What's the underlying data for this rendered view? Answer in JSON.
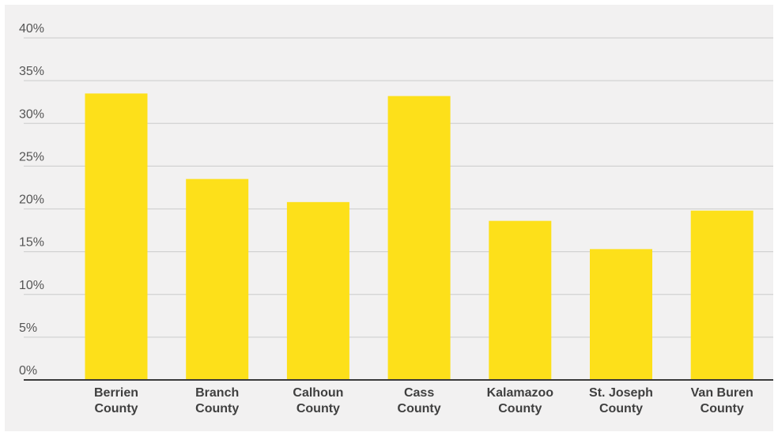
{
  "chart_data": {
    "type": "bar",
    "categories": [
      "Berrien County",
      "Branch County",
      "Calhoun County",
      "Cass County",
      "Kalamazoo County",
      "St. Joseph County",
      "Van Buren County"
    ],
    "category_lines": [
      [
        "Berrien",
        "County"
      ],
      [
        "Branch",
        "County"
      ],
      [
        "Calhoun",
        "County"
      ],
      [
        "Cass",
        "County"
      ],
      [
        "Kalamazoo",
        "County"
      ],
      [
        "St. Joseph",
        "County"
      ],
      [
        "Van Buren",
        "County"
      ]
    ],
    "values": [
      33.5,
      23.5,
      20.8,
      33.2,
      18.6,
      15.3,
      19.8
    ],
    "ylim": [
      0,
      40
    ],
    "yticks": [
      0,
      5,
      10,
      15,
      20,
      25,
      30,
      35,
      40
    ],
    "ytick_labels": [
      "0%",
      "5%",
      "10%",
      "15%",
      "20%",
      "25%",
      "30%",
      "35%",
      "40%"
    ],
    "title": "",
    "xlabel": "",
    "ylabel": "",
    "grid": true,
    "legend": "none",
    "colors": {
      "bar": "#fde01a",
      "grid": "#d2d2d2",
      "axis": "#3a3a3a",
      "background": "#f2f1f1"
    }
  }
}
